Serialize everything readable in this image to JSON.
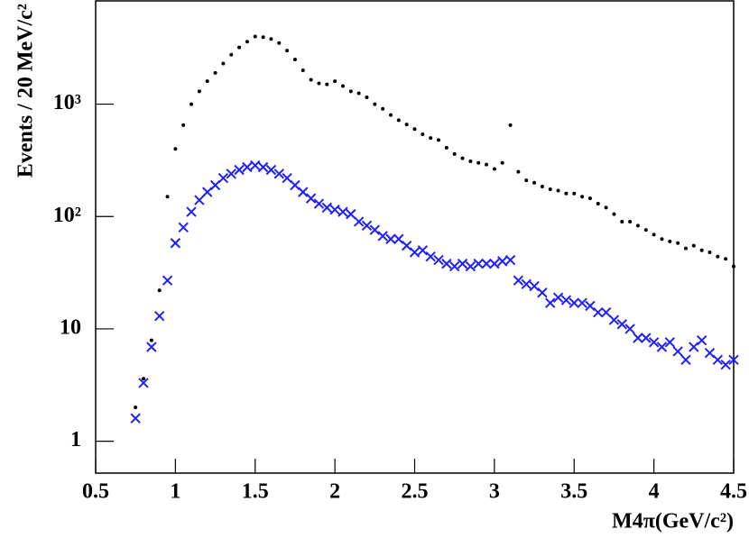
{
  "chart_data": {
    "type": "scatter",
    "x_label": "M4π(GeV/c²)",
    "y_label": "Events / 20 MeV/c²",
    "x": [
      0.75,
      0.8,
      0.85,
      0.9,
      0.95,
      1.0,
      1.05,
      1.1,
      1.15,
      1.2,
      1.25,
      1.3,
      1.35,
      1.4,
      1.45,
      1.5,
      1.55,
      1.6,
      1.65,
      1.7,
      1.75,
      1.8,
      1.85,
      1.9,
      1.95,
      2.0,
      2.05,
      2.1,
      2.15,
      2.2,
      2.25,
      2.3,
      2.35,
      2.4,
      2.45,
      2.5,
      2.55,
      2.6,
      2.65,
      2.7,
      2.75,
      2.8,
      2.85,
      2.9,
      2.95,
      3.0,
      3.05,
      3.1,
      3.15,
      3.2,
      3.25,
      3.3,
      3.35,
      3.4,
      3.45,
      3.5,
      3.55,
      3.6,
      3.65,
      3.7,
      3.75,
      3.8,
      3.85,
      3.9,
      3.95,
      4.0,
      4.05,
      4.1,
      4.15,
      4.2,
      4.25,
      4.3,
      4.35,
      4.4,
      4.45,
      4.5
    ],
    "series": [
      {
        "color": "#000000",
        "marker": "dot",
        "values": [
          2,
          3.6,
          7.9,
          22,
          150,
          400,
          650,
          1000,
          1300,
          1600,
          1900,
          2300,
          2750,
          3200,
          3600,
          4000,
          3950,
          3800,
          3500,
          3000,
          2500,
          2000,
          1650,
          1530,
          1500,
          1600,
          1450,
          1300,
          1250,
          1150,
          1000,
          910,
          800,
          720,
          660,
          600,
          540,
          500,
          480,
          410,
          360,
          330,
          310,
          300,
          290,
          265,
          300,
          650,
          250,
          210,
          200,
          185,
          175,
          170,
          160,
          160,
          150,
          145,
          130,
          120,
          105,
          90,
          90,
          83,
          76,
          69,
          63,
          60,
          58,
          52,
          55,
          50,
          48,
          44,
          42,
          36
        ]
      },
      {
        "color": "#1f1fff",
        "marker": "cross",
        "values": [
          1.6,
          3.3,
          6.9,
          13,
          27,
          58,
          80,
          110,
          140,
          165,
          190,
          220,
          240,
          260,
          275,
          285,
          275,
          260,
          240,
          220,
          190,
          165,
          145,
          130,
          120,
          115,
          110,
          105,
          90,
          83,
          76,
          67,
          63,
          63,
          55,
          48,
          50,
          44,
          41,
          38,
          36,
          38,
          36,
          38,
          38,
          38,
          40,
          41,
          27,
          25,
          24,
          21,
          17,
          19,
          18,
          17,
          17,
          16,
          14,
          14,
          12,
          11,
          10,
          8.3,
          8.3,
          7.6,
          6.9,
          7.6,
          6.3,
          5.3,
          6.9,
          7.9,
          6.1,
          5.3,
          4.8,
          5.3
        ]
      }
    ],
    "xlim": [
      0.5,
      4.5
    ],
    "xticks": [
      0.5,
      1,
      1.5,
      2,
      2.5,
      3,
      3.5,
      4,
      4.5
    ],
    "ylim": [
      0.52,
      8300
    ],
    "y_log": true,
    "yticks": [
      1,
      10,
      {
        "value": 100,
        "label": "10²"
      },
      {
        "value": 1000,
        "label": "10³"
      }
    ]
  }
}
